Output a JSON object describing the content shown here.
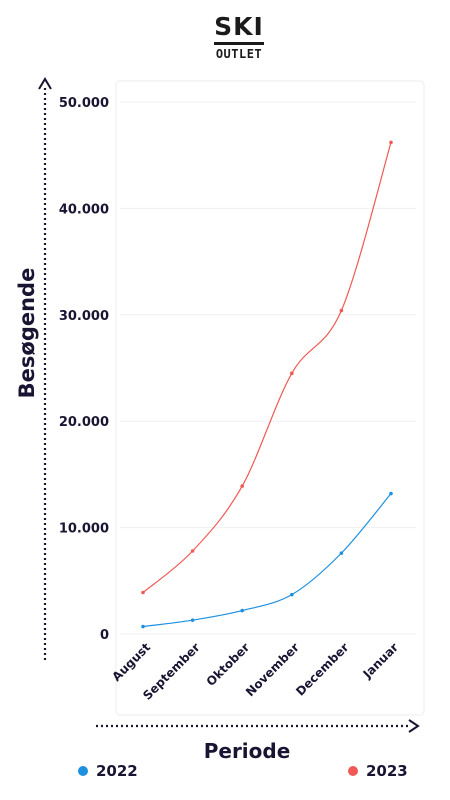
{
  "logo": {
    "top": "SKI",
    "bottom": "OUTLET"
  },
  "chart_data": {
    "type": "line",
    "categories": [
      "August",
      "September",
      "Oktober",
      "November",
      "December",
      "Januar"
    ],
    "series": [
      {
        "name": "2022",
        "color": "#1e90e0",
        "values": [
          700,
          1300,
          2200,
          3700,
          7600,
          13200
        ]
      },
      {
        "name": "2023",
        "color": "#ef5a55",
        "values": [
          3900,
          7800,
          13900,
          24500,
          30400,
          46200
        ]
      }
    ],
    "ylim": [
      0,
      50000
    ],
    "yticks": [
      0,
      10000,
      20000,
      30000,
      40000,
      50000
    ],
    "ytick_labels": [
      "0",
      "10.000",
      "20.000",
      "30.000",
      "40.000",
      "50.000"
    ],
    "xlabel": "Periode",
    "ylabel": "Besøgende",
    "grid": true,
    "legend": "bottom"
  }
}
